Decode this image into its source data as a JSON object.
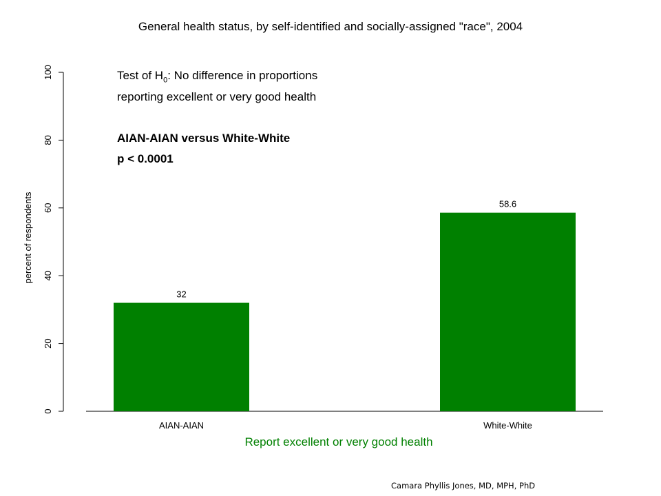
{
  "chart_data": {
    "type": "bar",
    "title": "General health status, by self-identified and socially-assigned \"race\", 2004",
    "categories": [
      "AIAN-AIAN",
      "White-White"
    ],
    "values": [
      32,
      58.6
    ],
    "data_labels": [
      "32",
      "58.6"
    ],
    "xlabel": "Report excellent or very good health",
    "ylabel": "percent of respondents",
    "ylim": [
      0,
      100
    ],
    "yticks": [
      0,
      20,
      40,
      60,
      80,
      100
    ],
    "grid": false,
    "bar_color": "#008000",
    "xlabel_color": "#008000"
  },
  "annotation": {
    "line1_prefix": "Test of H",
    "line1_subscript": "0",
    "line1_suffix": ":  No difference in proportions",
    "line2": "reporting excellent or very good health",
    "line3": "AIAN-AIAN versus White-White",
    "line4": "p < 0.0001"
  },
  "credit": "Camara Phyllis Jones, MD, MPH, PhD"
}
